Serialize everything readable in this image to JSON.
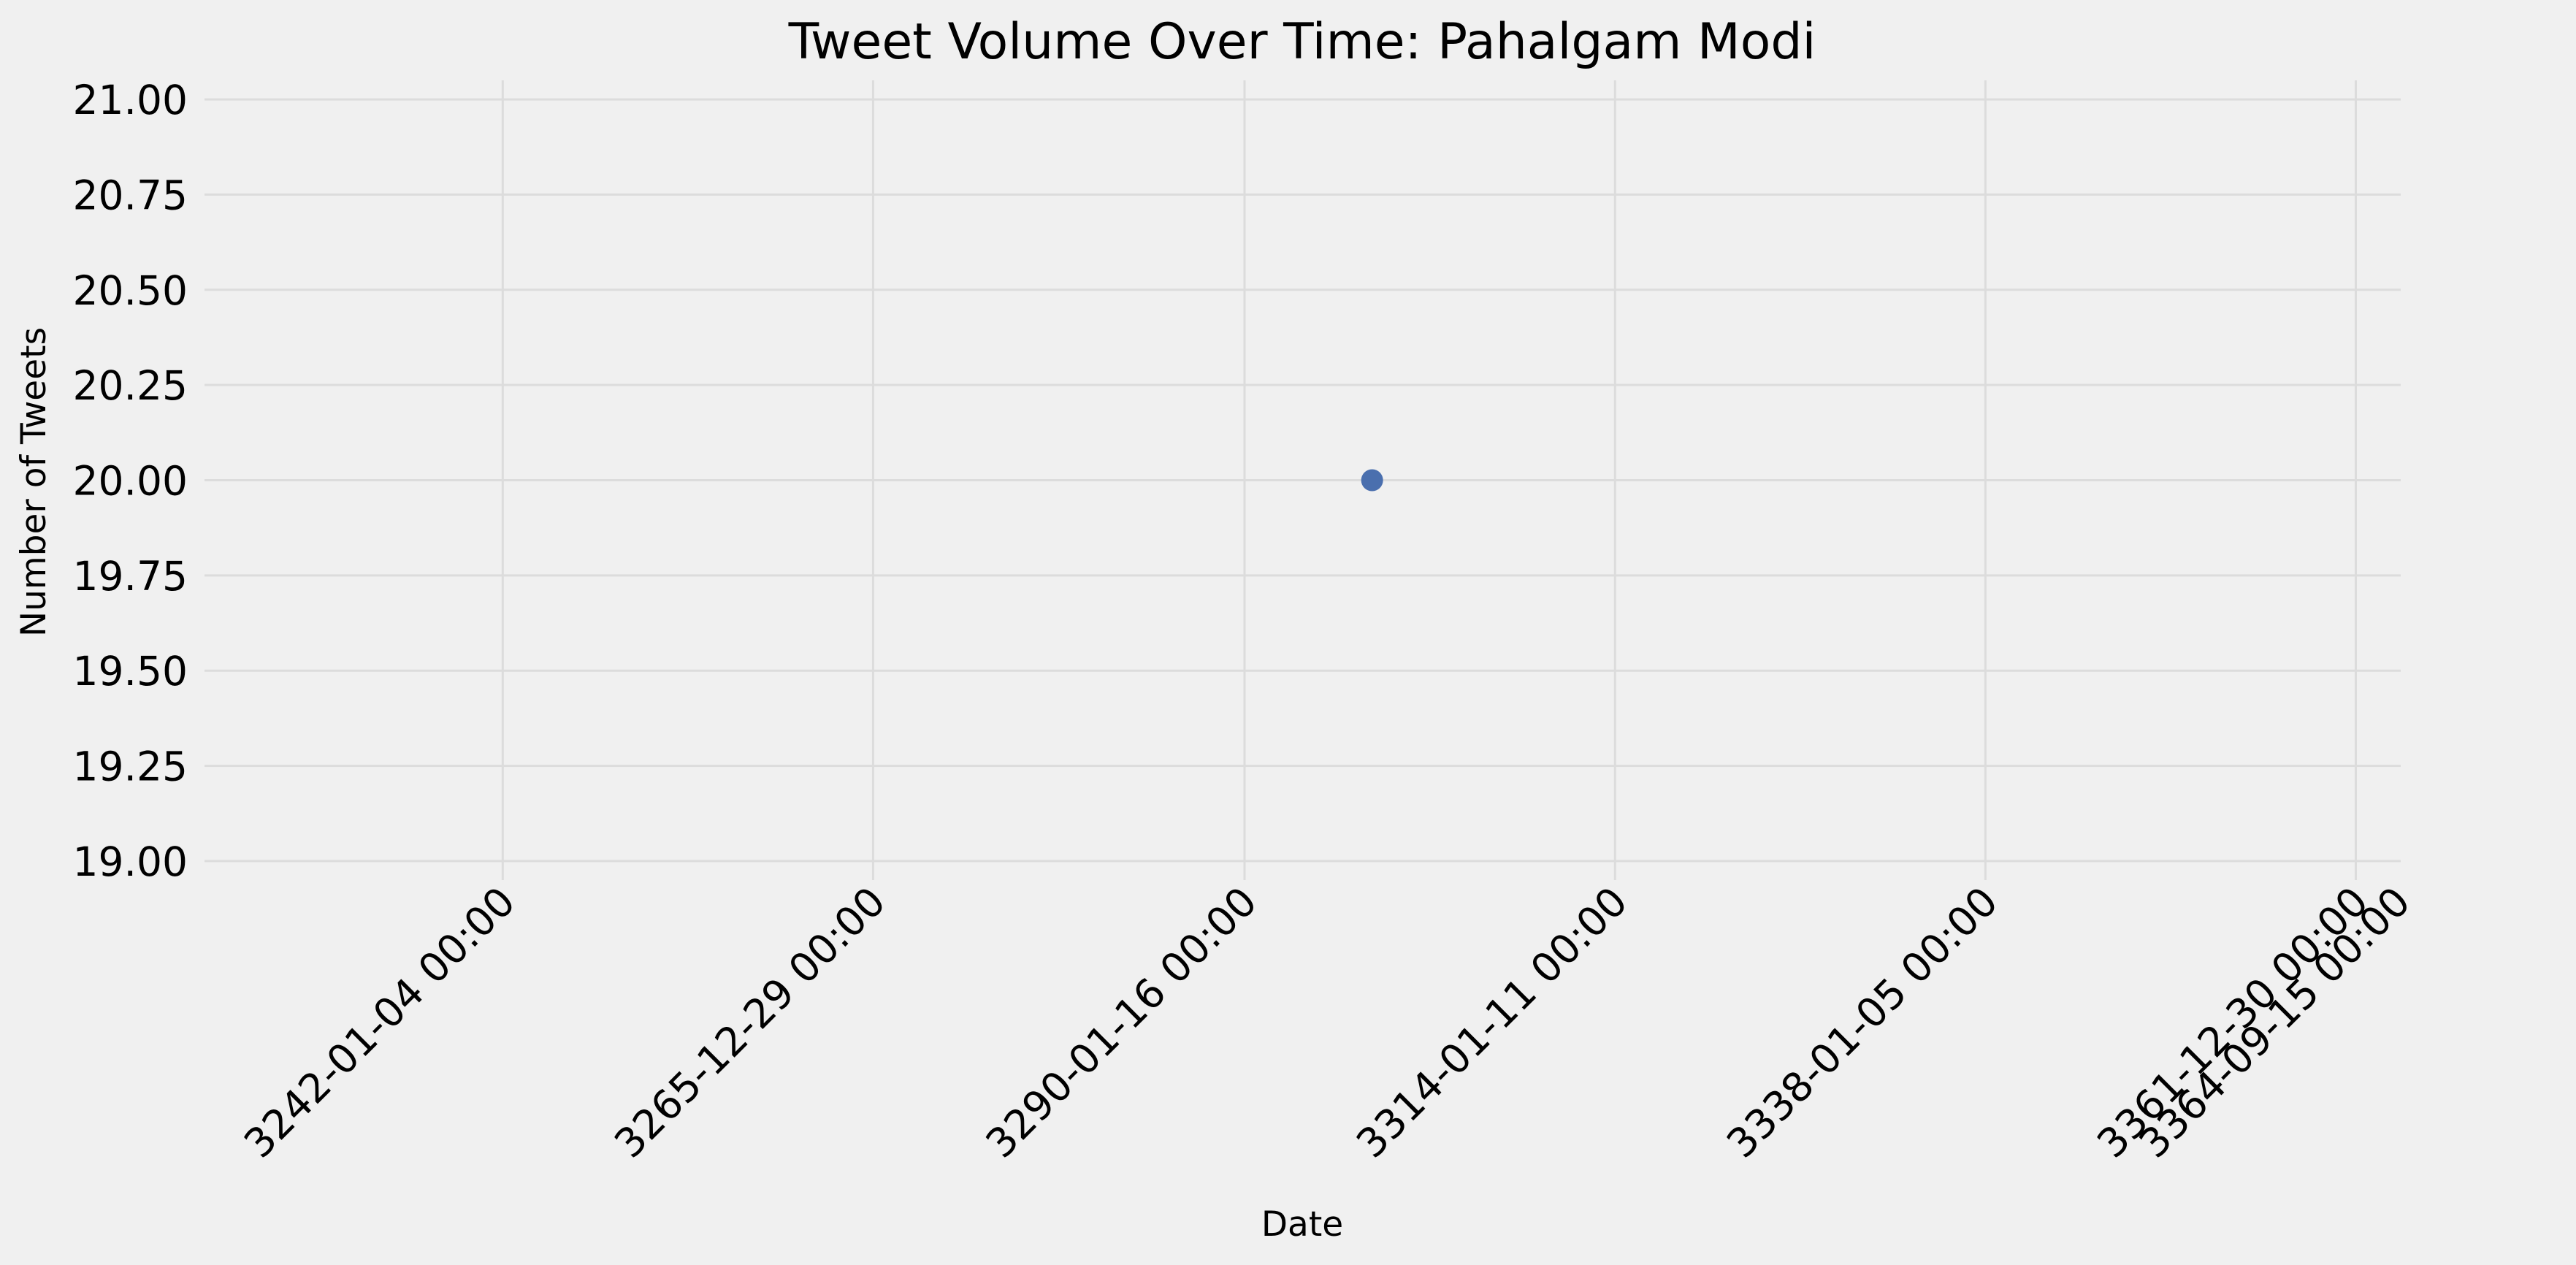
{
  "chart_data": {
    "type": "scatter",
    "title": "Tweet Volume Over Time: Pahalgam Modi",
    "xlabel": "Date",
    "ylabel": "Number of Tweets",
    "y_ticks": [
      "19.00",
      "19.25",
      "19.50",
      "19.75",
      "20.00",
      "20.25",
      "20.50",
      "20.75",
      "21.00"
    ],
    "y_tick_values": [
      19.0,
      19.25,
      19.5,
      19.75,
      20.0,
      20.25,
      20.5,
      20.75,
      21.0
    ],
    "x_ticks": [
      "3242-01-04 00:00",
      "3265-12-29 00:00",
      "3290-01-16 00:00",
      "3314-01-11 00:00",
      "3338-01-05 00:00",
      "3361-12-30 00:00",
      "3364-09-15 00:00"
    ],
    "x_tick_years": [
      3242.01,
      3265.99,
      3290.04,
      3314.03,
      3338.01,
      3361.99,
      3364.71
    ],
    "ylim": [
      18.95,
      21.05
    ],
    "xlim_years": [
      3222.7,
      3364.9
    ],
    "grid": true,
    "points": [
      {
        "x_year": 3298.3,
        "y": 20
      }
    ],
    "marker_color": "#4a6fae",
    "background_color": "#f0f0f0",
    "grid_color": "#dcdcdc"
  }
}
